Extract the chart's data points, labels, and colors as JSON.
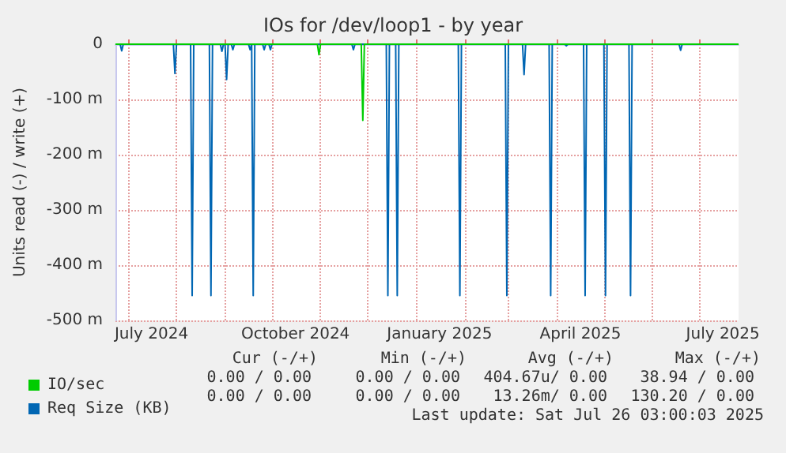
{
  "chart_data": {
    "type": "line",
    "title": "IOs for /dev/loop1 - by year",
    "ylabel": "Units read (-) / write (+)",
    "xlim": [
      "2024-06-23",
      "2025-07-26"
    ],
    "xticks": [
      {
        "value": "2024-07-01",
        "label": null
      },
      {
        "value": "2024-07-16",
        "label": "July 2024"
      },
      {
        "value": "2024-08-01",
        "label": null
      },
      {
        "value": "2024-09-01",
        "label": null
      },
      {
        "value": "2024-10-01",
        "label": null
      },
      {
        "value": "2024-10-16",
        "label": "October 2024"
      },
      {
        "value": "2024-11-01",
        "label": null
      },
      {
        "value": "2024-12-01",
        "label": null
      },
      {
        "value": "2025-01-01",
        "label": null
      },
      {
        "value": "2025-01-16",
        "label": "January 2025"
      },
      {
        "value": "2025-02-01",
        "label": null
      },
      {
        "value": "2025-03-01",
        "label": null
      },
      {
        "value": "2025-04-01",
        "label": null
      },
      {
        "value": "2025-04-16",
        "label": "April 2025"
      },
      {
        "value": "2025-05-01",
        "label": null
      },
      {
        "value": "2025-06-01",
        "label": null
      },
      {
        "value": "2025-07-01",
        "label": null
      },
      {
        "value": "2025-07-16",
        "label": "July 2025"
      }
    ],
    "ylim": [
      -500,
      0
    ],
    "yticks": [
      {
        "value": -500,
        "label": "-500 m"
      },
      {
        "value": -400,
        "label": "-400 m"
      },
      {
        "value": -300,
        "label": "-300 m"
      },
      {
        "value": -200,
        "label": "-200 m"
      },
      {
        "value": -100,
        "label": "-100 m"
      },
      0
    ],
    "grid": true,
    "legend": "bottom left",
    "series": [
      {
        "name": "Req Size (KB)",
        "color": "#0066b3",
        "x": [
          "2024-06-23",
          "2024-06-26",
          "2024-06-27",
          "2024-06-28",
          "2024-07-30",
          "2024-07-31",
          "2024-08-01",
          "2024-08-10",
          "2024-08-11",
          "2024-08-12",
          "2024-08-22",
          "2024-08-23",
          "2024-08-24",
          "2024-08-29",
          "2024-08-30",
          "2024-08-31",
          "2024-09-01",
          "2024-09-02",
          "2024-09-03",
          "2024-09-05",
          "2024-09-06",
          "2024-09-07",
          "2024-09-16",
          "2024-09-17",
          "2024-09-18",
          "2024-09-19",
          "2024-09-20",
          "2024-09-25",
          "2024-09-26",
          "2024-09-27",
          "2024-09-29",
          "2024-09-30",
          "2024-10-01",
          "2024-11-21",
          "2024-11-22",
          "2024-11-23",
          "2024-12-13",
          "2024-12-14",
          "2024-12-15",
          "2024-12-19",
          "2024-12-20",
          "2024-12-21",
          "2025-01-28",
          "2025-01-29",
          "2025-01-30",
          "2025-02-27",
          "2025-02-28",
          "2025-03-01",
          "2025-03-10",
          "2025-03-11",
          "2025-03-12",
          "2025-03-27",
          "2025-03-28",
          "2025-03-29",
          "2025-04-06",
          "2025-04-07",
          "2025-04-08",
          "2025-04-18",
          "2025-04-19",
          "2025-04-20",
          "2025-05-01",
          "2025-05-02",
          "2025-05-03",
          "2025-05-17",
          "2025-05-18",
          "2025-05-19",
          "2025-06-18",
          "2025-06-19",
          "2025-06-20",
          "2025-07-26"
        ],
        "values": [
          0,
          0,
          -12,
          0,
          0,
          -53,
          0,
          0,
          -455,
          0,
          0,
          -455,
          0,
          0,
          -13,
          0,
          0,
          -64,
          0,
          0,
          -10,
          0,
          0,
          -10,
          0,
          -455,
          0,
          0,
          -10,
          0,
          0,
          -10,
          0,
          0,
          -10,
          0,
          0,
          -455,
          0,
          0,
          -455,
          0,
          0,
          -455,
          0,
          0,
          -455,
          0,
          0,
          -55,
          0,
          0,
          -455,
          0,
          0,
          -3,
          0,
          0,
          -455,
          0,
          0,
          -455,
          0,
          0,
          -455,
          0,
          0,
          -11,
          0,
          0
        ]
      },
      {
        "name": "IO/sec",
        "color": "#00cc00",
        "x": [
          "2024-06-23",
          "2024-10-30",
          "2024-10-31",
          "2024-11-01",
          "2024-11-27",
          "2024-11-28",
          "2024-11-29",
          "2025-07-26"
        ],
        "values": [
          0,
          0,
          -19,
          0,
          0,
          -138,
          0,
          0
        ]
      }
    ],
    "annotations": [
      "Cur (-/+)",
      "Min (-/+)",
      "Avg (-/+)",
      "Max (-/+)",
      "0.00 / 0.00",
      "0.00 / 0.00",
      "404.67u/ 0.00",
      "38.94 / 0.00",
      "0.00 / 0.00",
      "0.00 / 0.00",
      "13.26m/ 0.00",
      "130.20 / 0.00",
      "Last update: Sat Jul 26 03:00:03 2025"
    ]
  }
}
